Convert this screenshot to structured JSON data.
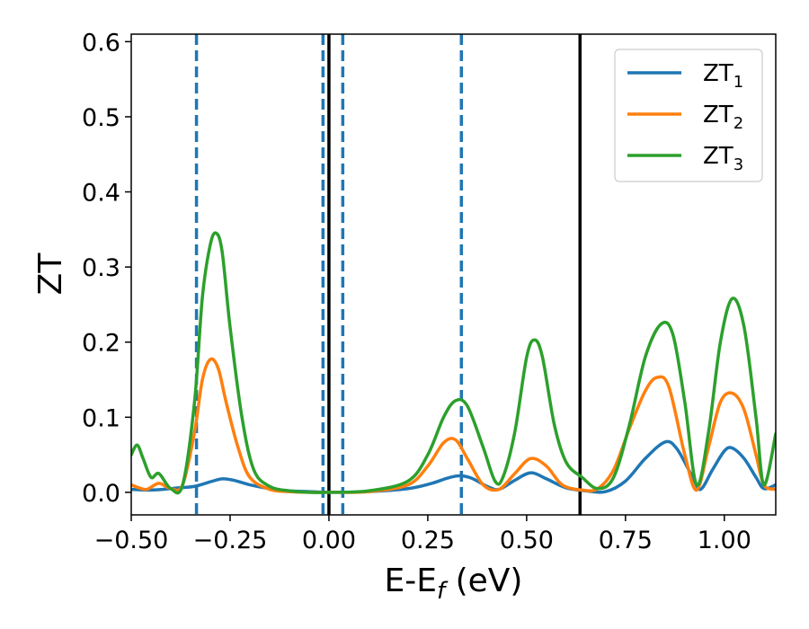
{
  "chart_data": {
    "type": "line",
    "xlabel": "E-E",
    "xlabel_sub": "f",
    "xlabel_unit": " (eV)",
    "ylabel": "ZT",
    "xlim": [
      -0.5,
      1.13
    ],
    "ylim": [
      -0.03,
      0.61
    ],
    "x_ticks": [
      -0.5,
      -0.25,
      0.0,
      0.25,
      0.5,
      0.75,
      1.0
    ],
    "x_tick_labels": [
      "−0.50",
      "−0.25",
      "0.00",
      "0.25",
      "0.50",
      "0.75",
      "1.00"
    ],
    "y_ticks": [
      0.0,
      0.1,
      0.2,
      0.3,
      0.4,
      0.5,
      0.6
    ],
    "y_tick_labels": [
      "0.0",
      "0.1",
      "0.2",
      "0.3",
      "0.4",
      "0.5",
      "0.6"
    ],
    "vlines_dashed": {
      "color": "#1f77b4",
      "x": [
        -0.335,
        -0.015,
        0.035,
        0.335
      ]
    },
    "vlines_solid": {
      "color": "#000000",
      "x": [
        0.0,
        0.635
      ]
    },
    "legend_position": "top-right",
    "grid": false,
    "series": [
      {
        "name": "ZT",
        "name_sub": "1",
        "color": "#1f77b4",
        "x": [
          -0.5,
          -0.46,
          -0.42,
          -0.38,
          -0.34,
          -0.3,
          -0.27,
          -0.24,
          -0.2,
          -0.15,
          -0.1,
          -0.05,
          0.0,
          0.1,
          0.2,
          0.26,
          0.3,
          0.33,
          0.36,
          0.4,
          0.43,
          0.47,
          0.51,
          0.55,
          0.6,
          0.65,
          0.7,
          0.75,
          0.8,
          0.85,
          0.88,
          0.92,
          0.94,
          0.97,
          1.0,
          1.02,
          1.05,
          1.08,
          1.1,
          1.13
        ],
        "y": [
          0.004,
          0.003,
          0.004,
          0.006,
          0.008,
          0.014,
          0.018,
          0.016,
          0.01,
          0.005,
          0.002,
          0.001,
          0.0,
          0.001,
          0.005,
          0.012,
          0.019,
          0.022,
          0.019,
          0.008,
          0.004,
          0.016,
          0.026,
          0.018,
          0.006,
          0.002,
          0.001,
          0.015,
          0.045,
          0.067,
          0.058,
          0.02,
          0.004,
          0.03,
          0.055,
          0.059,
          0.045,
          0.02,
          0.005,
          0.01
        ]
      },
      {
        "name": "ZT",
        "name_sub": "2",
        "color": "#ff7f0e",
        "x": [
          -0.5,
          -0.48,
          -0.46,
          -0.43,
          -0.4,
          -0.37,
          -0.34,
          -0.32,
          -0.3,
          -0.28,
          -0.26,
          -0.23,
          -0.2,
          -0.15,
          -0.1,
          -0.05,
          0.0,
          0.1,
          0.2,
          0.25,
          0.29,
          0.32,
          0.35,
          0.39,
          0.43,
          0.47,
          0.51,
          0.55,
          0.59,
          0.64,
          0.68,
          0.72,
          0.76,
          0.8,
          0.83,
          0.86,
          0.9,
          0.93,
          0.96,
          0.99,
          1.02,
          1.05,
          1.08,
          1.1,
          1.13
        ],
        "y": [
          0.01,
          0.006,
          0.004,
          0.012,
          0.005,
          0.01,
          0.08,
          0.15,
          0.177,
          0.165,
          0.12,
          0.06,
          0.02,
          0.004,
          0.001,
          0.0,
          0.0,
          0.001,
          0.01,
          0.035,
          0.066,
          0.07,
          0.045,
          0.01,
          0.004,
          0.025,
          0.045,
          0.035,
          0.01,
          0.003,
          0.005,
          0.03,
          0.085,
          0.135,
          0.153,
          0.14,
          0.05,
          0.003,
          0.06,
          0.12,
          0.132,
          0.11,
          0.05,
          0.01,
          0.004
        ]
      },
      {
        "name": "ZT",
        "name_sub": "3",
        "color": "#2ca02c",
        "x": [
          -0.5,
          -0.485,
          -0.47,
          -0.45,
          -0.43,
          -0.4,
          -0.37,
          -0.34,
          -0.32,
          -0.3,
          -0.285,
          -0.27,
          -0.25,
          -0.22,
          -0.19,
          -0.15,
          -0.1,
          -0.05,
          0.0,
          0.1,
          0.2,
          0.25,
          0.29,
          0.32,
          0.35,
          0.39,
          0.42,
          0.44,
          0.47,
          0.5,
          0.52,
          0.54,
          0.57,
          0.6,
          0.64,
          0.68,
          0.72,
          0.76,
          0.8,
          0.84,
          0.87,
          0.9,
          0.93,
          0.96,
          0.99,
          1.02,
          1.05,
          1.08,
          1.1,
          1.13
        ],
        "y": [
          0.05,
          0.063,
          0.045,
          0.02,
          0.025,
          0.005,
          0.01,
          0.12,
          0.26,
          0.33,
          0.345,
          0.32,
          0.22,
          0.1,
          0.03,
          0.008,
          0.002,
          0.0,
          0.0,
          0.002,
          0.015,
          0.05,
          0.1,
          0.122,
          0.115,
          0.06,
          0.015,
          0.02,
          0.08,
          0.18,
          0.203,
          0.18,
          0.09,
          0.04,
          0.02,
          0.005,
          0.02,
          0.09,
          0.18,
          0.224,
          0.21,
          0.12,
          0.01,
          0.08,
          0.2,
          0.258,
          0.22,
          0.1,
          0.01,
          0.078
        ]
      }
    ]
  }
}
